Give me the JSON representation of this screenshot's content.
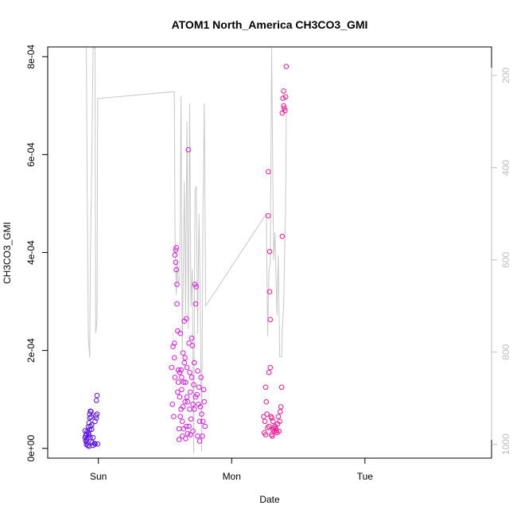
{
  "chart_data": {
    "type": "scatter",
    "title": "ATOM1 North_America CH3CO3_GMI",
    "xlabel": "Date",
    "ylabel": "CH3CO3_GMI",
    "x_ticks": [
      "Sun",
      "Mon",
      "Tue"
    ],
    "x_tick_days": [
      1,
      2,
      3
    ],
    "x_range_days": [
      0.62,
      3.95
    ],
    "y_ticks": [
      "0e+00",
      "2e-04",
      "4e-04",
      "6e-04",
      "8e-04"
    ],
    "y_tick_values": [
      0,
      0.0002,
      0.0004,
      0.0006,
      0.0008
    ],
    "ylim": [
      -2e-05,
      0.00082
    ],
    "y2_ticks": [
      "200",
      "400",
      "600",
      "800",
      "1000"
    ],
    "y2_tick_values": [
      200,
      400,
      600,
      800,
      1000
    ],
    "y2lim_reversed": [
      1030,
      138
    ],
    "y2_label": "",
    "grid": false,
    "legend": "none",
    "colors": {
      "axis": "#000000",
      "secondary_axis": "#bebebe",
      "pressure_line": "#c8c8c8",
      "flight1_points": "#5a12e6",
      "flight2_points": "#dd18e6",
      "flight3_points": "#ff1493"
    },
    "pressure_line_points": [
      [
        0.91,
        140
      ],
      [
        0.915,
        400
      ],
      [
        0.925,
        770
      ],
      [
        0.935,
        812
      ],
      [
        0.94,
        600
      ],
      [
        0.95,
        400
      ],
      [
        0.96,
        140
      ],
      [
        0.975,
        140
      ],
      [
        0.98,
        760
      ],
      [
        0.99,
        730
      ],
      [
        0.995,
        250
      ],
      [
        1.57,
        235
      ],
      [
        1.575,
        540
      ],
      [
        1.585,
        675
      ],
      [
        1.59,
        600
      ],
      [
        1.6,
        650
      ],
      [
        1.61,
        640
      ],
      [
        1.62,
        245
      ],
      [
        1.63,
        800
      ],
      [
        1.645,
        430
      ],
      [
        1.655,
        720
      ],
      [
        1.665,
        300
      ],
      [
        1.675,
        750
      ],
      [
        1.685,
        260
      ],
      [
        1.695,
        700
      ],
      [
        1.705,
        620
      ],
      [
        1.715,
        1020
      ],
      [
        1.725,
        450
      ],
      [
        1.735,
        440
      ],
      [
        1.745,
        760
      ],
      [
        1.755,
        500
      ],
      [
        1.765,
        700
      ],
      [
        1.775,
        1015
      ],
      [
        1.785,
        500
      ],
      [
        1.795,
        260
      ],
      [
        1.805,
        700
      ],
      [
        2.26,
        500
      ],
      [
        2.27,
        765
      ],
      [
        2.28,
        620
      ],
      [
        2.29,
        610
      ],
      [
        2.3,
        140
      ],
      [
        2.315,
        600
      ],
      [
        2.325,
        540
      ],
      [
        2.34,
        720
      ],
      [
        2.35,
        590
      ],
      [
        2.36,
        810
      ],
      [
        2.375,
        810
      ],
      [
        2.38,
        750
      ],
      [
        2.39,
        700
      ],
      [
        2.4,
        540
      ],
      [
        2.405,
        490
      ],
      [
        2.41,
        280
      ]
    ],
    "series": [
      {
        "x_days": [
          0.9,
          0.9,
          0.905,
          0.905,
          0.91,
          0.91,
          0.91,
          0.915,
          0.915,
          0.92,
          0.92,
          0.925,
          0.925,
          0.93,
          0.93,
          0.93,
          0.935,
          0.935,
          0.935,
          0.94,
          0.94,
          0.94,
          0.945,
          0.945,
          0.95,
          0.95,
          0.955,
          0.96,
          0.96,
          0.97,
          0.975,
          0.975,
          0.98,
          0.985,
          0.985,
          0.99,
          0.99,
          0.995
        ],
        "y": [
          2.2e-05,
          3.6e-05,
          2.6e-05,
          1.5e-05,
          2.9e-05,
          1.8e-05,
          8e-06,
          3.4e-05,
          1.2e-05,
          2.1e-05,
          6e-06,
          3.2e-05,
          4.4e-05,
          5.2e-05,
          2.8e-05,
          4e-06,
          3.8e-05,
          6.2e-05,
          7e-05,
          7.6e-05,
          4.5e-05,
          2.2e-05,
          6.4e-05,
          7.5e-05,
          3.9e-05,
          4.8e-05,
          1.2e-05,
          6e-06,
          2.2e-05,
          1e-05,
          9e-06,
          5.5e-05,
          6.7e-05,
          6.2e-05,
          9.8e-05,
          0.000108,
          7e-05,
          9e-06
        ]
      },
      {
        "x_days": [
          1.55,
          1.555,
          1.56,
          1.565,
          1.57,
          1.57,
          1.575,
          1.575,
          1.58,
          1.58,
          1.585,
          1.585,
          1.59,
          1.59,
          1.595,
          1.595,
          1.6,
          1.6,
          1.605,
          1.605,
          1.61,
          1.61,
          1.615,
          1.615,
          1.62,
          1.62,
          1.625,
          1.625,
          1.63,
          1.63,
          1.635,
          1.635,
          1.64,
          1.64,
          1.645,
          1.645,
          1.65,
          1.65,
          1.655,
          1.655,
          1.66,
          1.66,
          1.665,
          1.665,
          1.67,
          1.67,
          1.675,
          1.68,
          1.68,
          1.685,
          1.685,
          1.69,
          1.69,
          1.695,
          1.7,
          1.7,
          1.705,
          1.71,
          1.71,
          1.715,
          1.72,
          1.72,
          1.725,
          1.73,
          1.73,
          1.735,
          1.74,
          1.745,
          1.745,
          1.75,
          1.755,
          1.76,
          1.76,
          1.765,
          1.77,
          1.775,
          1.78,
          1.785,
          1.79,
          1.795,
          1.8
        ],
        "y": [
          0.000165,
          9e-05,
          0.000208,
          6.5e-05,
          0.000215,
          0.000185,
          0.000145,
          0.000395,
          0.000405,
          0.00038,
          0.000365,
          0.00041,
          0.000295,
          0.000335,
          0.00024,
          0.000115,
          0.00016,
          0.000135,
          4e-05,
          1.8e-05,
          0.000155,
          0.000105,
          0.000235,
          6.5e-05,
          0.00016,
          8e-05,
          0.000145,
          0.00012,
          5.5e-05,
          2.5e-05,
          8.5e-05,
          0.000195,
          0.000135,
          4e-05,
          0.000175,
          0.00026,
          0.000185,
          9.5e-05,
          0.000135,
          2e-05,
          0.000265,
          4.5e-05,
          0.000165,
          0.000105,
          9.5e-05,
          3e-05,
          0.00061,
          0.000215,
          4.5e-05,
          0.000155,
          8e-05,
          0.000115,
          2.8e-05,
          6e-05,
          0.000145,
          0.000225,
          0.00021,
          9e-05,
          3.5e-05,
          0.00013,
          8e-05,
          0.000175,
          0.000335,
          0.000295,
          0.000105,
          0.00033,
          0.00011,
          0.000158,
          2.5e-05,
          9e-05,
          0.000125,
          5.5e-05,
          1.5e-05,
          8.5e-05,
          0.000145,
          7e-05,
          2.5e-05,
          5.5e-05,
          0.00012,
          9.5e-05,
          4.5e-05
        ]
      },
      {
        "x_days": [
          2.24,
          2.245,
          2.25,
          2.255,
          2.255,
          2.26,
          2.265,
          2.27,
          2.275,
          2.275,
          2.28,
          2.28,
          2.285,
          2.285,
          2.29,
          2.29,
          2.295,
          2.3,
          2.3,
          2.305,
          2.31,
          2.31,
          2.315,
          2.32,
          2.325,
          2.33,
          2.335,
          2.34,
          2.345,
          2.35,
          2.355,
          2.36,
          2.365,
          2.37,
          2.375,
          2.38,
          2.38,
          2.385,
          2.39,
          2.39,
          2.395,
          2.4,
          2.405,
          2.41
        ],
        "y": [
          6.5e-05,
          3.2e-05,
          5.5e-05,
          0.000125,
          2.8e-05,
          9.5e-05,
          7e-05,
          4.2e-05,
          0.000565,
          0.000475,
          0.000155,
          4.5e-05,
          0.000402,
          0.00032,
          0.000263,
          0.000165,
          6.5e-05,
          6.2e-05,
          2.8e-05,
          2.5e-05,
          3.8e-05,
          5.5e-05,
          4.2e-05,
          3.5e-05,
          4.5e-05,
          4e-05,
          3.6e-05,
          3.2e-05,
          5e-05,
          6.5e-05,
          3.5e-05,
          5.5e-05,
          7.5e-05,
          8.5e-05,
          0.000125,
          0.000433,
          0.000685,
          0.000715,
          0.00073,
          0.0007,
          0.000695,
          0.00069,
          0.000718,
          0.00078
        ]
      }
    ]
  }
}
